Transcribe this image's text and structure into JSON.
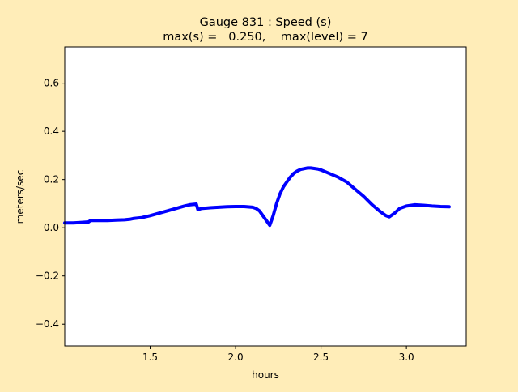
{
  "chart_data": {
    "type": "line",
    "title_line1": "Gauge 831 : Speed (s)",
    "title_line2": "max(s) =   0.250,    max(level) = 7",
    "xlabel": "hours",
    "ylabel": "meters/sec",
    "xlim": [
      1.0,
      3.35
    ],
    "ylim": [
      -0.49,
      0.75
    ],
    "xticks": [
      1.5,
      2.0,
      2.5,
      3.0
    ],
    "xtick_labels": [
      "1.5",
      "2.0",
      "2.5",
      "3.0"
    ],
    "yticks": [
      -0.4,
      -0.2,
      0.0,
      0.2,
      0.4,
      0.6
    ],
    "ytick_labels": [
      "−0.4",
      "−0.2",
      "0.0",
      "0.2",
      "0.4",
      "0.6"
    ],
    "grid": false,
    "series": [
      {
        "color": "#0000ff",
        "x": [
          1.0,
          1.05,
          1.1,
          1.14,
          1.15,
          1.2,
          1.25,
          1.3,
          1.35,
          1.38,
          1.4,
          1.45,
          1.5,
          1.55,
          1.6,
          1.65,
          1.7,
          1.73,
          1.77,
          1.78,
          1.8,
          1.85,
          1.9,
          1.95,
          2.0,
          2.05,
          2.1,
          2.12,
          2.14,
          2.16,
          2.18,
          2.2,
          2.22,
          2.24,
          2.26,
          2.28,
          2.3,
          2.32,
          2.34,
          2.36,
          2.38,
          2.4,
          2.42,
          2.44,
          2.46,
          2.48,
          2.5,
          2.55,
          2.6,
          2.65,
          2.7,
          2.75,
          2.8,
          2.85,
          2.88,
          2.9,
          2.93,
          2.96,
          3.0,
          3.05,
          3.1,
          3.15,
          3.2,
          3.25
        ],
        "y": [
          0.02,
          0.02,
          0.022,
          0.024,
          0.03,
          0.03,
          0.03,
          0.032,
          0.033,
          0.035,
          0.038,
          0.042,
          0.05,
          0.06,
          0.07,
          0.08,
          0.09,
          0.095,
          0.098,
          0.075,
          0.08,
          0.083,
          0.085,
          0.087,
          0.088,
          0.088,
          0.085,
          0.08,
          0.07,
          0.05,
          0.03,
          0.01,
          0.05,
          0.1,
          0.14,
          0.17,
          0.19,
          0.21,
          0.225,
          0.235,
          0.242,
          0.245,
          0.248,
          0.248,
          0.246,
          0.244,
          0.24,
          0.225,
          0.21,
          0.19,
          0.16,
          0.13,
          0.095,
          0.065,
          0.05,
          0.045,
          0.06,
          0.08,
          0.09,
          0.095,
          0.093,
          0.09,
          0.088,
          0.087
        ]
      }
    ]
  }
}
